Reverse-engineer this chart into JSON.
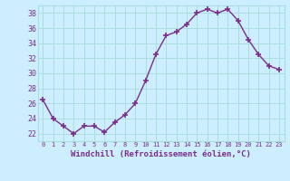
{
  "x": [
    0,
    1,
    2,
    3,
    4,
    5,
    6,
    7,
    8,
    9,
    10,
    11,
    12,
    13,
    14,
    15,
    16,
    17,
    18,
    19,
    20,
    21,
    22,
    23
  ],
  "y": [
    26.5,
    24.0,
    23.0,
    22.0,
    23.0,
    23.0,
    22.2,
    23.5,
    24.5,
    26.0,
    29.0,
    32.5,
    35.0,
    35.5,
    36.5,
    38.0,
    38.5,
    38.0,
    38.5,
    37.0,
    34.5,
    32.5,
    31.0,
    30.5
  ],
  "line_color": "#7b2d8b",
  "marker": "+",
  "bg_color": "#cceeff",
  "grid_color": "#aadddd",
  "xlabel": "Windchill (Refroidissement éolien,°C)",
  "font_color": "#7b2d8b",
  "ylim": [
    21,
    39
  ],
  "xlim": [
    -0.5,
    23.5
  ],
  "yticks": [
    22,
    24,
    26,
    28,
    30,
    32,
    34,
    36,
    38
  ],
  "xtick_labels": [
    "0",
    "1",
    "2",
    "3",
    "4",
    "5",
    "6",
    "7",
    "8",
    "9",
    "10",
    "11",
    "12",
    "13",
    "14",
    "15",
    "16",
    "17",
    "18",
    "19",
    "20",
    "21",
    "22",
    "23"
  ],
  "linewidth": 1.0,
  "markersize": 4,
  "markeredgewidth": 1.2
}
